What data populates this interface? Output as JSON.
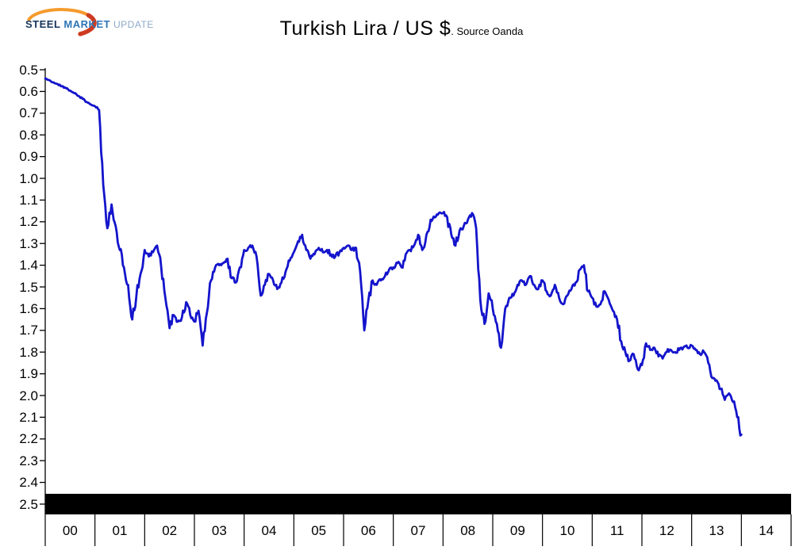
{
  "header": {
    "title": "Turkish Lira / US $",
    "subtitle": ". Source Oanda"
  },
  "logo": {
    "steel": "STEEL",
    "market": "MARKET",
    "update": "UPDATE",
    "swoosh_orange": "#f59b2d",
    "swoosh_red": "#ce3a20"
  },
  "chart_data": {
    "type": "line",
    "title": "Turkish Lira / US $",
    "source_note": ". Source Oanda",
    "xlabel": "",
    "ylabel": "",
    "legend": "none",
    "grid": false,
    "y_axis_note": "inverted display: 0.5 at top, 2.5 at bottom",
    "ylim": [
      0.5,
      2.5
    ],
    "y_tick_labels": [
      "0.5",
      "0.6",
      "0.7",
      "0.8",
      "0.9",
      "1.0",
      "1.1",
      "1.2",
      "1.3",
      "1.4",
      "1.5",
      "1.6",
      "1.7",
      "1.8",
      "1.9",
      "2.0",
      "2.1",
      "2.2",
      "2.3",
      "2.4",
      "2.5"
    ],
    "x_tick_labels": [
      "00",
      "01",
      "02",
      "03",
      "04",
      "05",
      "06",
      "07",
      "08",
      "09",
      "10",
      "11",
      "12",
      "13",
      "14"
    ],
    "line_color": "#1414cc",
    "axis_bar_color": "#000000",
    "series": [
      {
        "name": "Turkish Lira per US Dollar",
        "start_year": 2000,
        "interval": "monthly",
        "values": [
          0.541,
          0.548,
          0.558,
          0.566,
          0.576,
          0.585,
          0.596,
          0.608,
          0.621,
          0.634,
          0.648,
          0.66,
          0.668,
          0.686,
          1.03,
          1.23,
          1.12,
          1.22,
          1.33,
          1.41,
          1.49,
          1.65,
          1.54,
          1.44,
          1.33,
          1.36,
          1.34,
          1.31,
          1.41,
          1.55,
          1.69,
          1.63,
          1.66,
          1.64,
          1.57,
          1.63,
          1.66,
          1.61,
          1.77,
          1.62,
          1.47,
          1.41,
          1.4,
          1.39,
          1.37,
          1.46,
          1.48,
          1.41,
          1.33,
          1.32,
          1.31,
          1.36,
          1.54,
          1.49,
          1.44,
          1.47,
          1.51,
          1.48,
          1.43,
          1.38,
          1.34,
          1.29,
          1.26,
          1.33,
          1.37,
          1.35,
          1.32,
          1.34,
          1.33,
          1.35,
          1.36,
          1.34,
          1.32,
          1.31,
          1.33,
          1.32,
          1.43,
          1.7,
          1.56,
          1.47,
          1.49,
          1.47,
          1.45,
          1.42,
          1.41,
          1.39,
          1.41,
          1.35,
          1.33,
          1.31,
          1.26,
          1.33,
          1.26,
          1.19,
          1.18,
          1.16,
          1.16,
          1.18,
          1.26,
          1.31,
          1.24,
          1.22,
          1.19,
          1.16,
          1.23,
          1.56,
          1.67,
          1.53,
          1.6,
          1.67,
          1.78,
          1.6,
          1.55,
          1.54,
          1.49,
          1.47,
          1.49,
          1.45,
          1.49,
          1.51,
          1.47,
          1.52,
          1.54,
          1.49,
          1.55,
          1.58,
          1.54,
          1.51,
          1.48,
          1.42,
          1.4,
          1.52,
          1.55,
          1.59,
          1.58,
          1.52,
          1.56,
          1.61,
          1.65,
          1.75,
          1.8,
          1.84,
          1.81,
          1.88,
          1.86,
          1.76,
          1.79,
          1.78,
          1.82,
          1.83,
          1.8,
          1.79,
          1.8,
          1.79,
          1.78,
          1.78,
          1.77,
          1.79,
          1.81,
          1.8,
          1.85,
          1.92,
          1.93,
          1.97,
          2.02,
          1.99,
          2.03,
          2.1,
          2.18
        ]
      }
    ]
  }
}
